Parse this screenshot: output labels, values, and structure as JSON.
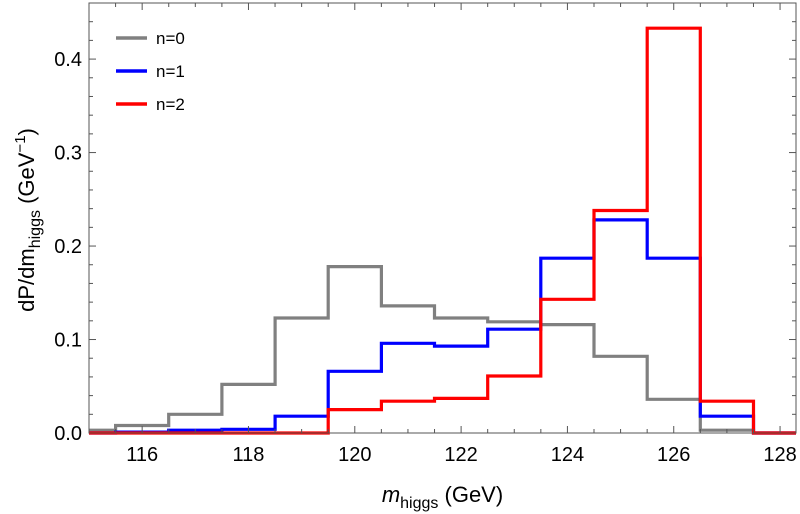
{
  "chart_data": {
    "type": "line",
    "style": "step-histogram",
    "title": "",
    "xlabel": {
      "main": "m",
      "sub": "higgs",
      "suffix": " (GeV)"
    },
    "ylabel": {
      "main": "dP/dm",
      "sub": "higgs",
      "suffix": " (GeV",
      "sup": "−1",
      "close": ")"
    },
    "xlim": [
      115,
      128.3
    ],
    "ylim": [
      0,
      0.46
    ],
    "x_ticks": [
      116,
      118,
      120,
      122,
      124,
      126,
      128
    ],
    "x_tick_labels": [
      "116",
      "118",
      "120",
      "122",
      "124",
      "126",
      "128"
    ],
    "y_ticks": [
      0.0,
      0.1,
      0.2,
      0.3,
      0.4
    ],
    "y_tick_labels": [
      "0.0",
      "0.1",
      "0.2",
      "0.3",
      "0.4"
    ],
    "bin_edges": [
      114.5,
      115.5,
      116.5,
      117.5,
      118.5,
      119.5,
      120.5,
      121.5,
      122.5,
      123.5,
      124.5,
      125.5,
      126.5,
      127.5,
      128.5
    ],
    "legend_position": "top-left",
    "series": [
      {
        "name": "n=0",
        "color": "#808080",
        "values": [
          0.003,
          0.008,
          0.02,
          0.052,
          0.123,
          0.178,
          0.136,
          0.123,
          0.119,
          0.116,
          0.082,
          0.036,
          0.003,
          0.0
        ]
      },
      {
        "name": "n=1",
        "color": "#0000ff",
        "values": [
          0.0,
          0.001,
          0.003,
          0.004,
          0.018,
          0.066,
          0.096,
          0.093,
          0.111,
          0.187,
          0.228,
          0.187,
          0.018,
          0.0
        ]
      },
      {
        "name": "n=2",
        "color": "#ff0000",
        "values": [
          0.0,
          0.0,
          0.0,
          0.0,
          0.0,
          0.025,
          0.034,
          0.037,
          0.061,
          0.143,
          0.238,
          0.433,
          0.034,
          0.0
        ]
      }
    ]
  }
}
